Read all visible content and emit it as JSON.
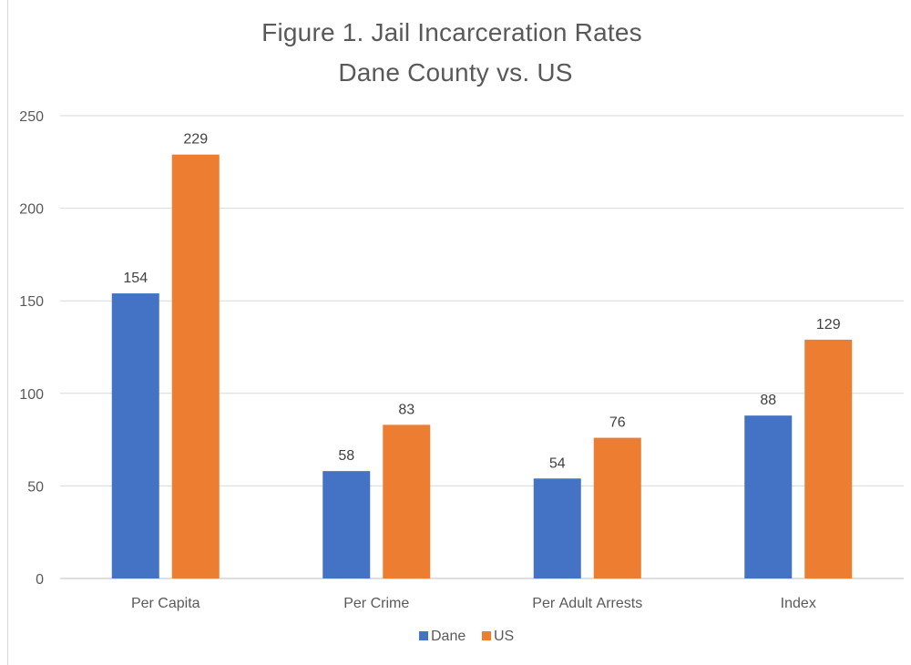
{
  "chart_data": {
    "type": "bar",
    "title_lines": [
      "Figure 1. Jail Incarceration Rates ",
      "Dane County vs. US"
    ],
    "categories": [
      "Per Capita",
      "Per Crime",
      "Per Adult Arrests",
      "Index"
    ],
    "series": [
      {
        "name": "Dane",
        "values": [
          154,
          58,
          54,
          88
        ],
        "color": "#4472c4"
      },
      {
        "name": "US",
        "values": [
          229,
          83,
          76,
          129
        ],
        "color": "#ed7d31"
      }
    ],
    "ylim": [
      0,
      250
    ],
    "yticks": [
      0,
      50,
      100,
      150,
      200,
      250
    ],
    "grid": true,
    "legend_position": "bottom",
    "data_labels": true
  }
}
